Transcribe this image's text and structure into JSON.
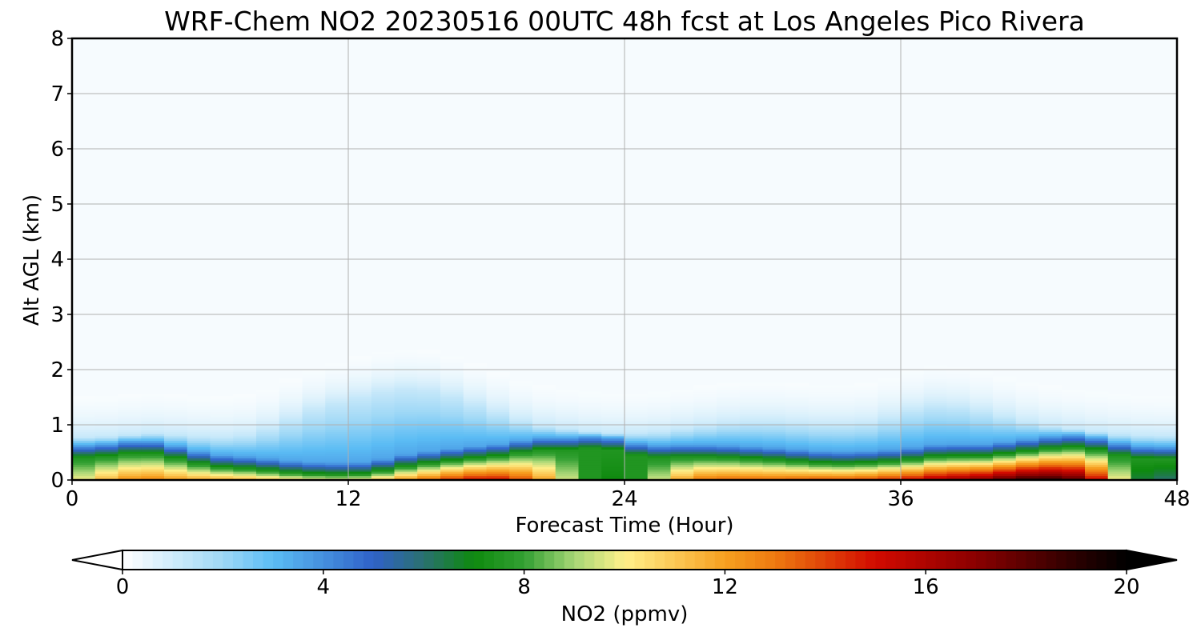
{
  "chart_data": {
    "type": "heatmap",
    "title": "WRF-Chem NO2  20230516 00UTC 48h fcst at Los Angeles Pico Rivera",
    "xlabel": "Forecast Time (Hour)",
    "ylabel": "Alt AGL (km)",
    "xlim": [
      0,
      48
    ],
    "ylim": [
      0,
      8
    ],
    "xticks": [
      0,
      12,
      24,
      36,
      48
    ],
    "yticks": [
      0,
      1,
      2,
      3,
      4,
      5,
      6,
      7,
      8
    ],
    "grid": true,
    "colorbar": {
      "label": "NO2  (ppmv)",
      "orientation": "horizontal",
      "position": "bottom",
      "range": [
        0,
        20
      ],
      "ticks": [
        0,
        4,
        8,
        12,
        16,
        20
      ],
      "extend": "both",
      "stops": [
        {
          "v": 0,
          "c": "#ffffff"
        },
        {
          "v": 2,
          "c": "#9fd8f6"
        },
        {
          "v": 3,
          "c": "#5bbcf4"
        },
        {
          "v": 5,
          "c": "#2f62c8"
        },
        {
          "v": 6,
          "c": "#2a7070"
        },
        {
          "v": 7,
          "c": "#0e8a0e"
        },
        {
          "v": 8,
          "c": "#33a033"
        },
        {
          "v": 9,
          "c": "#a6d676"
        },
        {
          "v": 10,
          "c": "#fff08a"
        },
        {
          "v": 12,
          "c": "#f7a020"
        },
        {
          "v": 13,
          "c": "#ee7a10"
        },
        {
          "v": 15,
          "c": "#d20a00"
        },
        {
          "v": 17,
          "c": "#8a0000"
        },
        {
          "v": 19,
          "c": "#2a0000"
        },
        {
          "v": 20,
          "c": "#000000"
        }
      ]
    },
    "x": [
      0,
      1,
      2,
      3,
      4,
      5,
      6,
      7,
      8,
      9,
      10,
      11,
      12,
      13,
      14,
      15,
      16,
      17,
      18,
      19,
      20,
      21,
      22,
      23,
      24,
      25,
      26,
      27,
      28,
      29,
      30,
      31,
      32,
      33,
      34,
      35,
      36,
      37,
      38,
      39,
      40,
      41,
      42,
      43,
      44,
      45,
      46,
      47,
      48
    ],
    "profiles": {
      "surface_no2": [
        9,
        11,
        12,
        13,
        12.5,
        12,
        12,
        12,
        11.5,
        11,
        10.5,
        10,
        10,
        10.5,
        12,
        13,
        14,
        15,
        15.5,
        15,
        13,
        11,
        8,
        7,
        7,
        8,
        11,
        13,
        13.5,
        13.5,
        13.5,
        13.5,
        14,
        14,
        14,
        14.5,
        15,
        16,
        17,
        17,
        18,
        19,
        19.5,
        19,
        18,
        13,
        7,
        6,
        6
      ],
      "mixing_depth_km": [
        0.4,
        0.42,
        0.45,
        0.52,
        0.45,
        0.35,
        0.25,
        0.22,
        0.2,
        0.15,
        0.12,
        0.1,
        0.1,
        0.12,
        0.22,
        0.28,
        0.33,
        0.38,
        0.42,
        0.45,
        0.55,
        0.55,
        0.55,
        0.6,
        0.5,
        0.4,
        0.42,
        0.42,
        0.42,
        0.4,
        0.38,
        0.36,
        0.32,
        0.3,
        0.3,
        0.32,
        0.35,
        0.4,
        0.45,
        0.42,
        0.45,
        0.5,
        0.55,
        0.6,
        0.6,
        0.5,
        0.4,
        0.38,
        0.38
      ],
      "background_km": [
        0.78,
        0.78,
        0.8,
        0.85,
        0.85,
        0.8,
        0.78,
        0.78,
        0.85,
        1.0,
        1.2,
        1.35,
        1.45,
        1.55,
        1.65,
        1.65,
        1.6,
        1.45,
        1.3,
        1.15,
        1.0,
        0.95,
        0.9,
        0.85,
        0.85,
        0.85,
        0.9,
        0.95,
        1.0,
        1.05,
        1.05,
        1.05,
        1.0,
        1.0,
        1.0,
        1.05,
        1.2,
        1.35,
        1.35,
        1.3,
        1.2,
        1.1,
        1.0,
        0.95,
        0.9,
        0.85,
        0.82,
        0.8,
        0.8
      ]
    }
  }
}
